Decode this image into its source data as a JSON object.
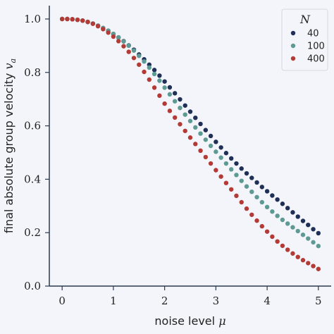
{
  "chart_data": {
    "type": "scatter",
    "xlabel_text": "noise level ",
    "xlabel_symbol": "μ",
    "ylabel_text": "final absolute group velocity ",
    "ylabel_symbol": "v",
    "ylabel_subscript": "a",
    "xlim": [
      -0.25,
      5.25
    ],
    "ylim": [
      0.0,
      1.05
    ],
    "xticks": [
      0,
      1,
      2,
      3,
      4,
      5
    ],
    "yticks": [
      0.0,
      0.2,
      0.4,
      0.6,
      0.8,
      1.0
    ],
    "xtick_labels": [
      "0",
      "1",
      "2",
      "3",
      "4",
      "5"
    ],
    "ytick_labels": [
      "0.0",
      "0.2",
      "0.4",
      "0.6",
      "0.8",
      "1.0"
    ],
    "grid": false,
    "legend": {
      "title": "N",
      "placement": "top-right"
    },
    "x": [
      0.0,
      0.1,
      0.2,
      0.3,
      0.4,
      0.5,
      0.6,
      0.7,
      0.8,
      0.9,
      1.0,
      1.1,
      1.2,
      1.3,
      1.4,
      1.5,
      1.6,
      1.7,
      1.8,
      1.9,
      2.0,
      2.1,
      2.2,
      2.3,
      2.4,
      2.5,
      2.6,
      2.7,
      2.8,
      2.9,
      3.0,
      3.1,
      3.2,
      3.3,
      3.4,
      3.5,
      3.6,
      3.7,
      3.8,
      3.9,
      4.0,
      4.1,
      4.2,
      4.3,
      4.4,
      4.5,
      4.6,
      4.7,
      4.8,
      4.9,
      5.0
    ],
    "series": [
      {
        "name": "40",
        "color": "#1f2f56",
        "values": [
          1.0,
          1.0,
          0.999,
          0.997,
          0.994,
          0.989,
          0.983,
          0.975,
          0.966,
          0.956,
          0.944,
          0.931,
          0.917,
          0.901,
          0.885,
          0.867,
          0.849,
          0.829,
          0.809,
          0.788,
          0.766,
          0.744,
          0.722,
          0.699,
          0.676,
          0.653,
          0.63,
          0.607,
          0.584,
          0.562,
          0.54,
          0.519,
          0.498,
          0.478,
          0.459,
          0.44,
          0.422,
          0.405,
          0.388,
          0.371,
          0.355,
          0.339,
          0.324,
          0.308,
          0.292,
          0.276,
          0.26,
          0.244,
          0.229,
          0.213,
          0.198
        ]
      },
      {
        "name": "100",
        "color": "#5d9a93",
        "values": [
          1.0,
          1.0,
          0.999,
          0.997,
          0.994,
          0.989,
          0.983,
          0.975,
          0.966,
          0.956,
          0.944,
          0.931,
          0.916,
          0.9,
          0.882,
          0.862,
          0.841,
          0.818,
          0.794,
          0.769,
          0.743,
          0.718,
          0.692,
          0.667,
          0.642,
          0.618,
          0.594,
          0.571,
          0.548,
          0.525,
          0.503,
          0.481,
          0.459,
          0.437,
          0.416,
          0.394,
          0.373,
          0.353,
          0.333,
          0.314,
          0.296,
          0.279,
          0.263,
          0.248,
          0.234,
          0.22,
          0.206,
          0.192,
          0.178,
          0.164,
          0.15
        ]
      },
      {
        "name": "400",
        "color": "#b33a35",
        "values": [
          1.0,
          1.0,
          0.999,
          0.997,
          0.994,
          0.989,
          0.982,
          0.973,
          0.962,
          0.949,
          0.934,
          0.917,
          0.898,
          0.877,
          0.854,
          0.829,
          0.802,
          0.773,
          0.743,
          0.713,
          0.683,
          0.656,
          0.631,
          0.606,
          0.581,
          0.556,
          0.532,
          0.507,
          0.483,
          0.459,
          0.434,
          0.41,
          0.386,
          0.362,
          0.338,
          0.314,
          0.29,
          0.267,
          0.245,
          0.224,
          0.204,
          0.185,
          0.167,
          0.151,
          0.136,
          0.122,
          0.109,
          0.097,
          0.086,
          0.075,
          0.064
        ]
      }
    ]
  }
}
